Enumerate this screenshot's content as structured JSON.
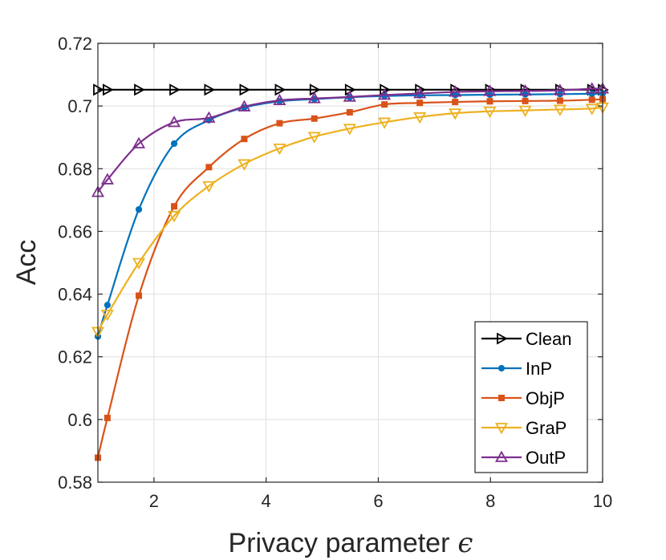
{
  "chart_data": {
    "type": "line",
    "xlabel": "Privacy parameter",
    "xlabel_symbol": "ϵ",
    "ylabel": "Acc",
    "xlim": [
      1,
      10
    ],
    "ylim": [
      0.58,
      0.72
    ],
    "xticks": [
      2,
      4,
      6,
      8,
      10
    ],
    "xtick_labels": [
      "2",
      "4",
      "6",
      "8",
      "10"
    ],
    "yticks": [
      0.58,
      0.6,
      0.62,
      0.64,
      0.66,
      0.68,
      0.7,
      0.72
    ],
    "ytick_labels": [
      "0.58",
      "0.6",
      "0.62",
      "0.64",
      "0.66",
      "0.68",
      "0.7",
      "0.72"
    ],
    "grid": true,
    "legend_position": "bottom-right",
    "x": [
      1.0,
      1.17,
      1.73,
      2.36,
      2.98,
      3.61,
      4.24,
      4.86,
      5.49,
      6.11,
      6.74,
      7.37,
      7.99,
      8.62,
      9.24,
      9.81,
      10.0
    ],
    "series": [
      {
        "name": "Clean",
        "color": "#000000",
        "marker": "triangle-right",
        "values": [
          0.7052,
          0.7052,
          0.7052,
          0.7052,
          0.7052,
          0.7052,
          0.7052,
          0.7052,
          0.7052,
          0.7052,
          0.7052,
          0.7052,
          0.7052,
          0.7052,
          0.7052,
          0.7052,
          0.7052
        ]
      },
      {
        "name": "InP",
        "color": "#0072BD",
        "marker": "circle",
        "values": [
          0.6265,
          0.6365,
          0.667,
          0.688,
          0.6955,
          0.6995,
          0.7015,
          0.7022,
          0.7028,
          0.7032,
          0.7034,
          0.7035,
          0.7036,
          0.7037,
          0.7038,
          0.7039,
          0.704
        ]
      },
      {
        "name": "ObjP",
        "color": "#D95319",
        "marker": "square",
        "values": [
          0.5878,
          0.6005,
          0.6395,
          0.668,
          0.6805,
          0.6895,
          0.6945,
          0.696,
          0.698,
          0.7005,
          0.701,
          0.7013,
          0.7015,
          0.7016,
          0.7017,
          0.702,
          0.7022
        ]
      },
      {
        "name": "GraP",
        "color": "#EDB120",
        "marker": "triangle-down",
        "values": [
          0.628,
          0.6335,
          0.65,
          0.665,
          0.6745,
          0.6815,
          0.6865,
          0.6902,
          0.6928,
          0.6948,
          0.6965,
          0.6977,
          0.6983,
          0.6986,
          0.6989,
          0.6992,
          0.6996
        ]
      },
      {
        "name": "OutP",
        "color": "#7E2F8E",
        "marker": "triangle-up",
        "values": [
          0.6725,
          0.6765,
          0.688,
          0.6948,
          0.6962,
          0.6998,
          0.7018,
          0.7024,
          0.7029,
          0.7035,
          0.704,
          0.7045,
          0.7047,
          0.7048,
          0.705,
          0.7055,
          0.7055
        ]
      }
    ]
  }
}
